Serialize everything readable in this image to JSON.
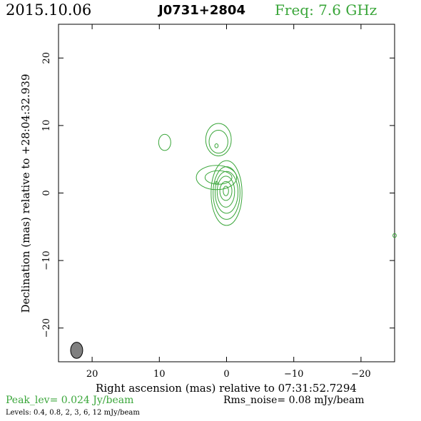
{
  "header": {
    "date": "2015.10.06",
    "source": "J0731+2804",
    "freq": "Freq: 7.6 GHz"
  },
  "footer": {
    "peak": "Peak_lev=  0.024 Jy/beam",
    "rms": "Rms_noise= 0.08 mJy/beam",
    "levels": "Levels: 0.4, 0.8,    2,    3,    6,   12 mJy/beam"
  },
  "colors": {
    "contour": "#3aa63a",
    "beam": "#808080"
  },
  "chart_data": {
    "type": "contour",
    "xlabel": "Right ascension (mas) relative to 07:31:52.7294",
    "ylabel": "Declination (mas) relative to +28:04:32.939",
    "xlim": [
      25,
      -25
    ],
    "ylim": [
      -25,
      25
    ],
    "xticks": [
      20,
      10,
      0,
      -10,
      -20
    ],
    "xtick_labels": [
      "20",
      "10",
      "0",
      "−10",
      "−20"
    ],
    "yticks": [
      20,
      10,
      0,
      -10,
      -20
    ],
    "ytick_labels": [
      "20",
      "10",
      "0",
      "−10",
      "−20"
    ],
    "levels_mJy": [
      0.4,
      0.8,
      2,
      3,
      6,
      12
    ],
    "contours": [
      {
        "cx": 0.0,
        "cy": 0.0,
        "rx": 2.3,
        "ry": 4.8
      },
      {
        "cx": 0.0,
        "cy": 0.0,
        "rx": 2.0,
        "ry": 3.9
      },
      {
        "cx": 0.0,
        "cy": 0.1,
        "rx": 1.7,
        "ry": 3.1
      },
      {
        "cx": 0.1,
        "cy": 0.2,
        "rx": 1.3,
        "ry": 2.3
      },
      {
        "cx": 0.1,
        "cy": 0.3,
        "rx": 0.9,
        "ry": 1.4
      },
      {
        "cx": 0.1,
        "cy": 0.3,
        "rx": 0.4,
        "ry": 0.7
      },
      {
        "cx": 1.5,
        "cy": 2.3,
        "rx": 3.0,
        "ry": 1.8
      },
      {
        "cx": 1.2,
        "cy": 2.3,
        "rx": 2.0,
        "ry": 1.0
      },
      {
        "cx": 1.2,
        "cy": 7.9,
        "rx": 1.9,
        "ry": 2.4
      },
      {
        "cx": 1.2,
        "cy": 7.6,
        "rx": 1.4,
        "ry": 1.7
      },
      {
        "cx": 1.5,
        "cy": 7.0,
        "rx": 0.25,
        "ry": 0.3
      },
      {
        "cx": 9.2,
        "cy": 7.5,
        "rx": 0.9,
        "ry": 1.2
      },
      {
        "cx": 1.5,
        "cy": 1.5,
        "rx": 0.2,
        "ry": 0.2
      },
      {
        "cx": -25.0,
        "cy": -6.3,
        "rx": 0.25,
        "ry": 0.3
      }
    ],
    "beam": {
      "cx": 22.3,
      "cy": -23.3,
      "rx": 0.9,
      "ry": 1.2
    }
  }
}
